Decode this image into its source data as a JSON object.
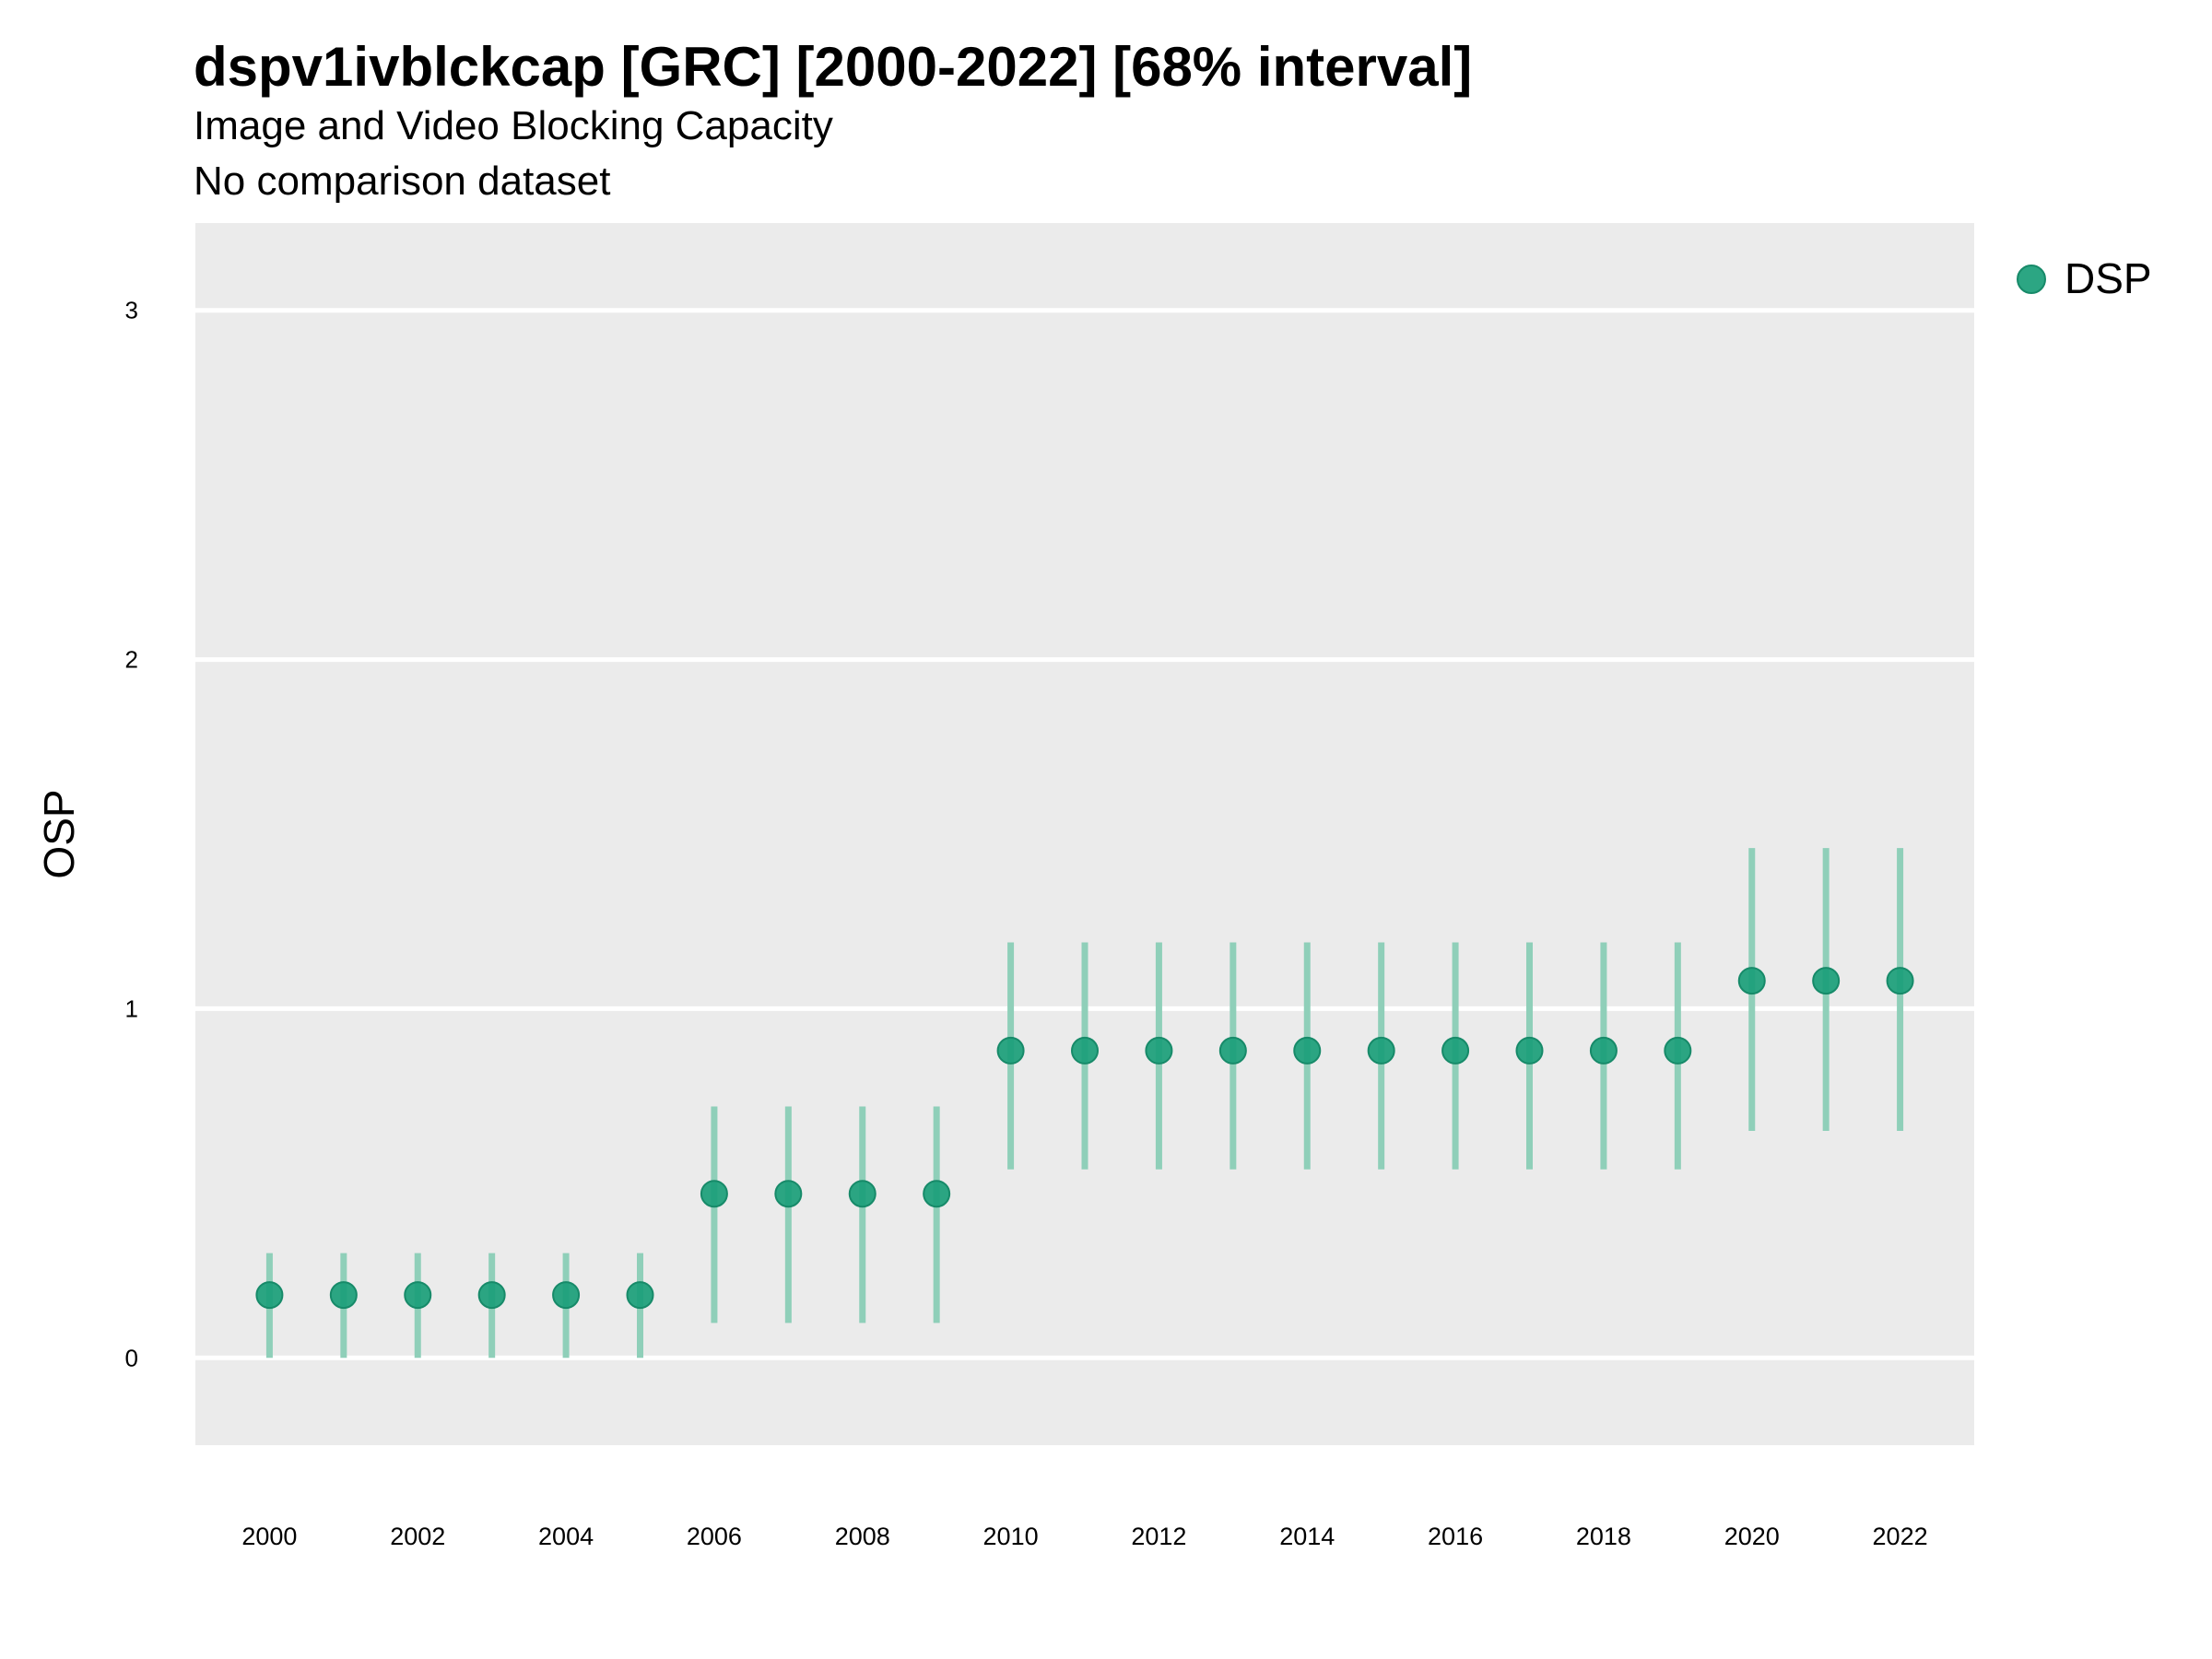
{
  "chart_data": {
    "type": "scatter",
    "title": "dspv1ivblckcap [GRC] [2000-2022] [68% interval]",
    "subtitle": "Image and Video Blocking Capacity",
    "subtitle2": "No comparison dataset",
    "xlabel": "",
    "ylabel": "OSP",
    "ylim": [
      -0.25,
      3.25
    ],
    "xlim": [
      1999,
      2023
    ],
    "yticks": [
      0,
      1,
      2,
      3
    ],
    "xticks": [
      2000,
      2002,
      2004,
      2006,
      2008,
      2010,
      2012,
      2014,
      2016,
      2018,
      2020,
      2022
    ],
    "grid": true,
    "legend_position": "top-right",
    "colors": {
      "point": "#1a9e78",
      "interval": "#8fcfb9",
      "panel": "#ebebeb",
      "grid": "#ffffff"
    },
    "series": [
      {
        "name": "DSP",
        "x": [
          2000,
          2001,
          2002,
          2003,
          2004,
          2005,
          2006,
          2007,
          2008,
          2009,
          2010,
          2011,
          2012,
          2013,
          2014,
          2015,
          2016,
          2017,
          2018,
          2019,
          2020,
          2021,
          2022
        ],
        "y": [
          0.18,
          0.18,
          0.18,
          0.18,
          0.18,
          0.18,
          0.47,
          0.47,
          0.47,
          0.47,
          0.88,
          0.88,
          0.88,
          0.88,
          0.88,
          0.88,
          0.88,
          0.88,
          0.88,
          0.88,
          1.08,
          1.08,
          1.08
        ],
        "lower": [
          0.0,
          0.0,
          0.0,
          0.0,
          0.0,
          0.0,
          0.1,
          0.1,
          0.1,
          0.1,
          0.54,
          0.54,
          0.54,
          0.54,
          0.54,
          0.54,
          0.54,
          0.54,
          0.54,
          0.54,
          0.65,
          0.65,
          0.65
        ],
        "upper": [
          0.3,
          0.3,
          0.3,
          0.3,
          0.3,
          0.3,
          0.72,
          0.72,
          0.72,
          0.72,
          1.19,
          1.19,
          1.19,
          1.19,
          1.19,
          1.19,
          1.19,
          1.19,
          1.19,
          1.19,
          1.46,
          1.46,
          1.46
        ]
      }
    ]
  }
}
